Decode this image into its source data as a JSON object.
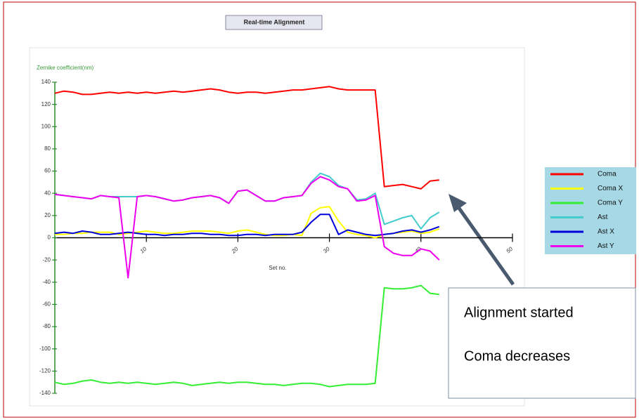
{
  "chart_data": {
    "type": "line",
    "title": "Real-time Alignment",
    "y_label": "Zernike coefficient(nm)",
    "x_label": "Set no.",
    "x": [
      0,
      1,
      2,
      3,
      4,
      5,
      6,
      7,
      8,
      9,
      10,
      11,
      12,
      13,
      14,
      15,
      16,
      17,
      18,
      19,
      20,
      21,
      22,
      23,
      24,
      25,
      26,
      27,
      28,
      29,
      30,
      31,
      32,
      33,
      34,
      35,
      36,
      37,
      38,
      39,
      40,
      41,
      42
    ],
    "xlim": [
      0,
      50
    ],
    "xticks": [
      10,
      20,
      30,
      40,
      50
    ],
    "ylim": [
      -140,
      140
    ],
    "yticks": [
      -140,
      -120,
      -100,
      -80,
      -60,
      -40,
      -20,
      0,
      20,
      40,
      60,
      80,
      100,
      120,
      140
    ],
    "grid": false,
    "legend": "right",
    "series": [
      {
        "name": "Coma",
        "color": "#ff0000",
        "values": [
          130,
          132,
          131,
          129,
          129,
          130,
          131,
          130,
          131,
          130,
          131,
          130,
          131,
          132,
          131,
          132,
          133,
          134,
          133,
          131,
          130,
          131,
          131,
          130,
          131,
          132,
          133,
          133,
          134,
          135,
          136,
          134,
          133,
          133,
          133,
          133,
          46,
          47,
          48,
          46,
          44,
          51,
          52
        ]
      },
      {
        "name": "Coma X",
        "color": "#ffff00",
        "values": [
          3,
          3,
          4,
          4,
          5,
          5,
          5,
          3,
          4,
          5,
          6,
          5,
          4,
          4,
          5,
          6,
          6,
          6,
          5,
          4,
          6,
          7,
          5,
          3,
          2,
          2,
          3,
          2,
          22,
          27,
          28,
          15,
          5,
          3,
          2,
          0,
          3,
          4,
          5,
          6,
          4,
          5,
          8
        ]
      },
      {
        "name": "Coma Y",
        "color": "#33ee33",
        "values": [
          -130,
          -132,
          -131,
          -129,
          -128,
          -130,
          -131,
          -130,
          -131,
          -130,
          -131,
          -132,
          -131,
          -130,
          -131,
          -133,
          -132,
          -131,
          -130,
          -131,
          -130,
          -130,
          -131,
          -132,
          -132,
          -133,
          -132,
          -131,
          -131,
          -132,
          -134,
          -133,
          -132,
          -132,
          -132,
          -131,
          -45,
          -46,
          -46,
          -45,
          -43,
          -50,
          -51
        ]
      },
      {
        "name": "Ast",
        "color": "#44cccc",
        "values": [
          39,
          38,
          37,
          36,
          35,
          38,
          37,
          37,
          37,
          37,
          38,
          37,
          35,
          33,
          34,
          36,
          37,
          38,
          36,
          31,
          42,
          43,
          38,
          33,
          33,
          36,
          37,
          38,
          50,
          58,
          55,
          47,
          44,
          34,
          35,
          40,
          12,
          15,
          18,
          20,
          8,
          18,
          23
        ]
      },
      {
        "name": "Ast X",
        "color": "#0000dd",
        "values": [
          4,
          5,
          4,
          6,
          5,
          3,
          3,
          4,
          5,
          4,
          3,
          3,
          2,
          3,
          3,
          4,
          4,
          3,
          3,
          2,
          2,
          3,
          3,
          2,
          3,
          3,
          3,
          5,
          14,
          21,
          21,
          3,
          7,
          5,
          3,
          2,
          3,
          4,
          6,
          7,
          5,
          7,
          10
        ]
      },
      {
        "name": "Ast Y",
        "color": "#ee00ee",
        "values": [
          39,
          38,
          37,
          36,
          35,
          38,
          37,
          36,
          -36,
          37,
          38,
          37,
          35,
          33,
          34,
          36,
          37,
          38,
          36,
          31,
          42,
          43,
          38,
          33,
          33,
          36,
          37,
          38,
          49,
          55,
          52,
          46,
          44,
          33,
          34,
          38,
          -8,
          -14,
          -16,
          -16,
          -10,
          -12,
          -20
        ]
      }
    ],
    "annotations": [
      "Alignment started",
      "Coma decreases"
    ]
  }
}
